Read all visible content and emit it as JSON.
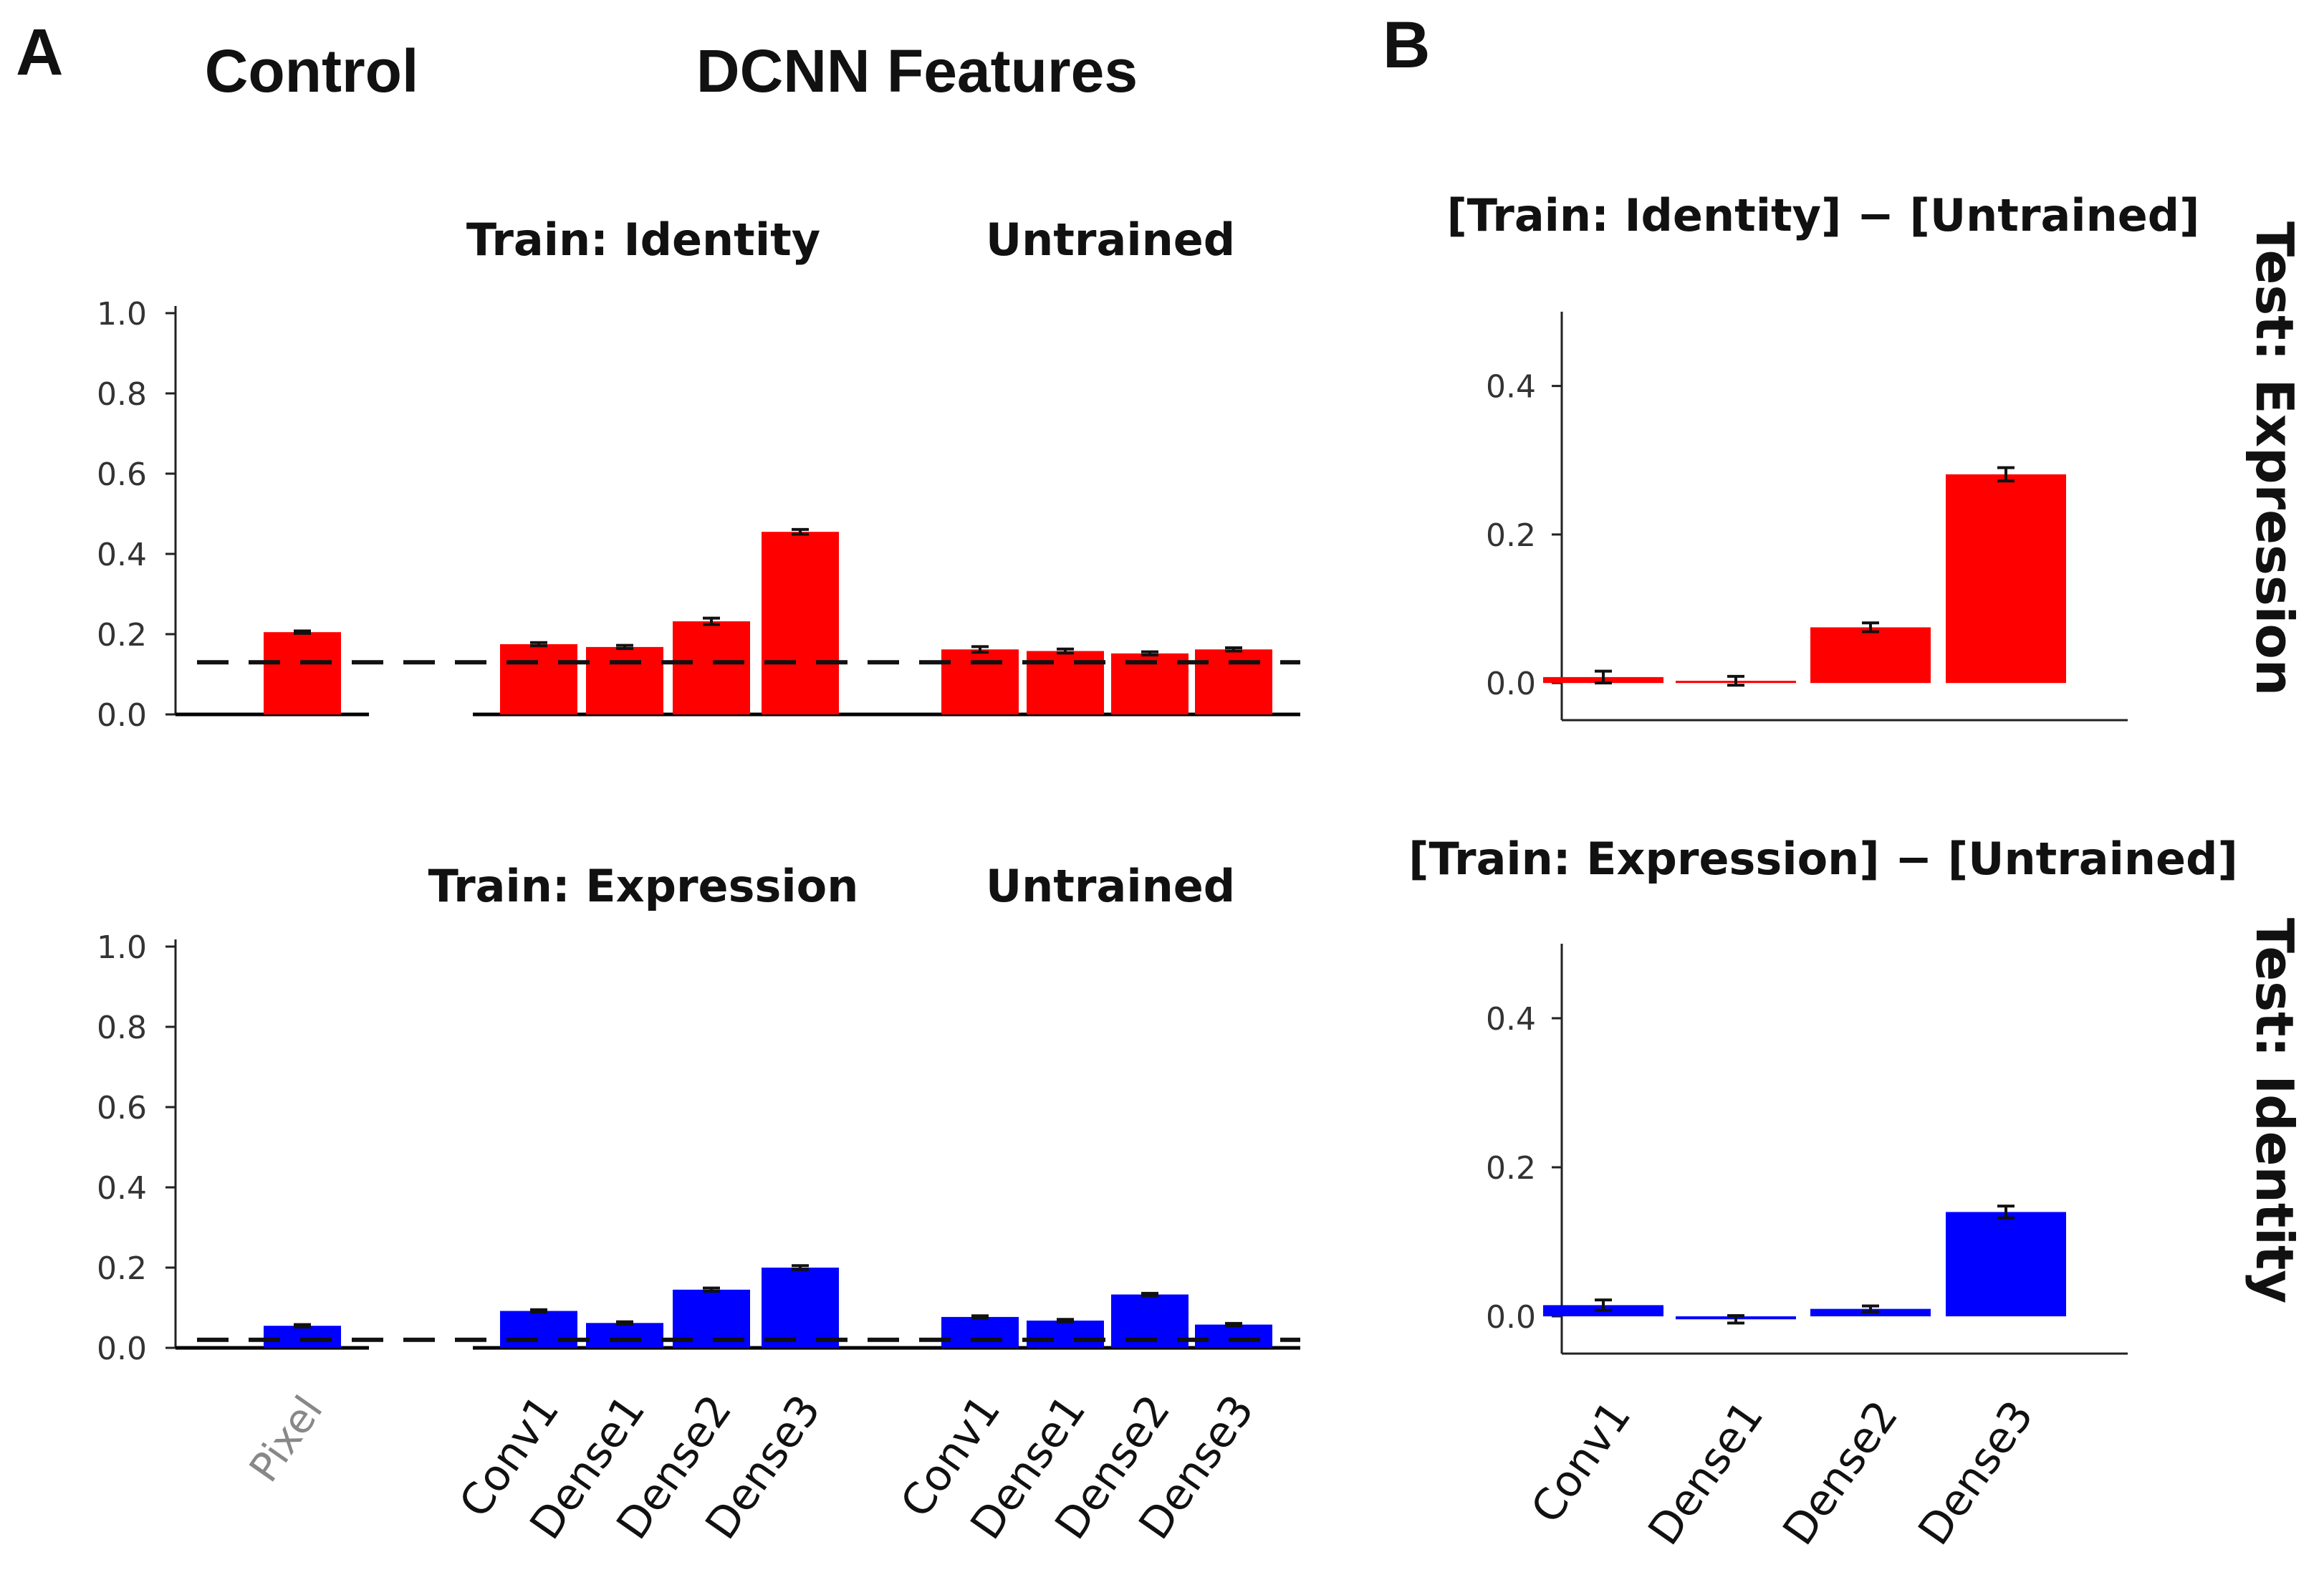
{
  "panel_labels": {
    "a": "A",
    "b": "B"
  },
  "headers": {
    "control": "Control",
    "dcnn": "DCNN Features"
  },
  "chart_data": [
    {
      "id": "a_top",
      "type": "bar",
      "color": "#ff0000",
      "ylim": [
        0,
        1.0
      ],
      "yticks": [
        "0.0",
        "0.2",
        "0.4",
        "0.6",
        "0.8",
        "1.0"
      ],
      "chance_level": 0.13,
      "group_titles": {
        "trained": "Train: Identity",
        "untrained": "Untrained"
      },
      "groups": [
        {
          "name": "control",
          "categories": [
            "Pixel"
          ],
          "values": [
            0.205
          ],
          "errors": [
            0.003
          ]
        },
        {
          "name": "trained",
          "categories": [
            "Conv1",
            "Dense1",
            "Dense2",
            "Dense3"
          ],
          "values": [
            0.175,
            0.168,
            0.232,
            0.455
          ],
          "errors": [
            0.004,
            0.004,
            0.008,
            0.006
          ]
        },
        {
          "name": "untrained",
          "categories": [
            "Conv1",
            "Dense1",
            "Dense2",
            "Dense3"
          ],
          "values": [
            0.162,
            0.158,
            0.152,
            0.162
          ],
          "errors": [
            0.007,
            0.005,
            0.004,
            0.004
          ]
        }
      ]
    },
    {
      "id": "a_bottom",
      "type": "bar",
      "color": "#0000ff",
      "ylim": [
        0,
        1.0
      ],
      "yticks": [
        "0.0",
        "0.2",
        "0.4",
        "0.6",
        "0.8",
        "1.0"
      ],
      "chance_level": 0.02,
      "group_titles": {
        "trained": "Train: Expression",
        "untrained": "Untrained"
      },
      "groups": [
        {
          "name": "control",
          "categories": [
            "Pixel"
          ],
          "values": [
            0.055
          ],
          "errors": [
            0.003
          ]
        },
        {
          "name": "trained",
          "categories": [
            "Conv1",
            "Dense1",
            "Dense2",
            "Dense3"
          ],
          "values": [
            0.092,
            0.062,
            0.145,
            0.2
          ],
          "errors": [
            0.003,
            0.003,
            0.004,
            0.005
          ]
        },
        {
          "name": "untrained",
          "categories": [
            "Conv1",
            "Dense1",
            "Dense2",
            "Dense3"
          ],
          "values": [
            0.077,
            0.068,
            0.133,
            0.058
          ],
          "errors": [
            0.003,
            0.003,
            0.003,
            0.003
          ]
        }
      ],
      "xtick_labels": {
        "control": [
          "Pixel"
        ],
        "trained": [
          "Conv1",
          "Dense1",
          "Dense2",
          "Dense3"
        ],
        "untrained": [
          "Conv1",
          "Dense1",
          "Dense2",
          "Dense3"
        ]
      }
    },
    {
      "id": "b_top",
      "type": "bar",
      "color": "#ff0000",
      "title": "[Train: Identity] − [Untrained]",
      "side_label": "Test: Expression",
      "ylim": [
        -0.05,
        0.5
      ],
      "yticks": [
        "0.0",
        "0.2",
        "0.4"
      ],
      "categories": [
        "Conv1",
        "Dense1",
        "Dense2",
        "Dense3"
      ],
      "values": [
        0.008,
        0.003,
        0.075,
        0.281
      ],
      "errors": [
        0.008,
        0.006,
        0.006,
        0.009
      ]
    },
    {
      "id": "b_bottom",
      "type": "bar",
      "color": "#0000ff",
      "title": "[Train: Expression] − [Untrained]",
      "side_label": "Test: Identity",
      "ylim": [
        -0.05,
        0.5
      ],
      "yticks": [
        "0.0",
        "0.2",
        "0.4"
      ],
      "categories": [
        "Conv1",
        "Dense1",
        "Dense2",
        "Dense3"
      ],
      "values": [
        0.015,
        -0.004,
        0.01,
        0.14
      ],
      "errors": [
        0.007,
        0.005,
        0.004,
        0.008
      ],
      "xtick_labels": [
        "Conv1",
        "Dense1",
        "Dense2",
        "Dense3"
      ]
    }
  ]
}
